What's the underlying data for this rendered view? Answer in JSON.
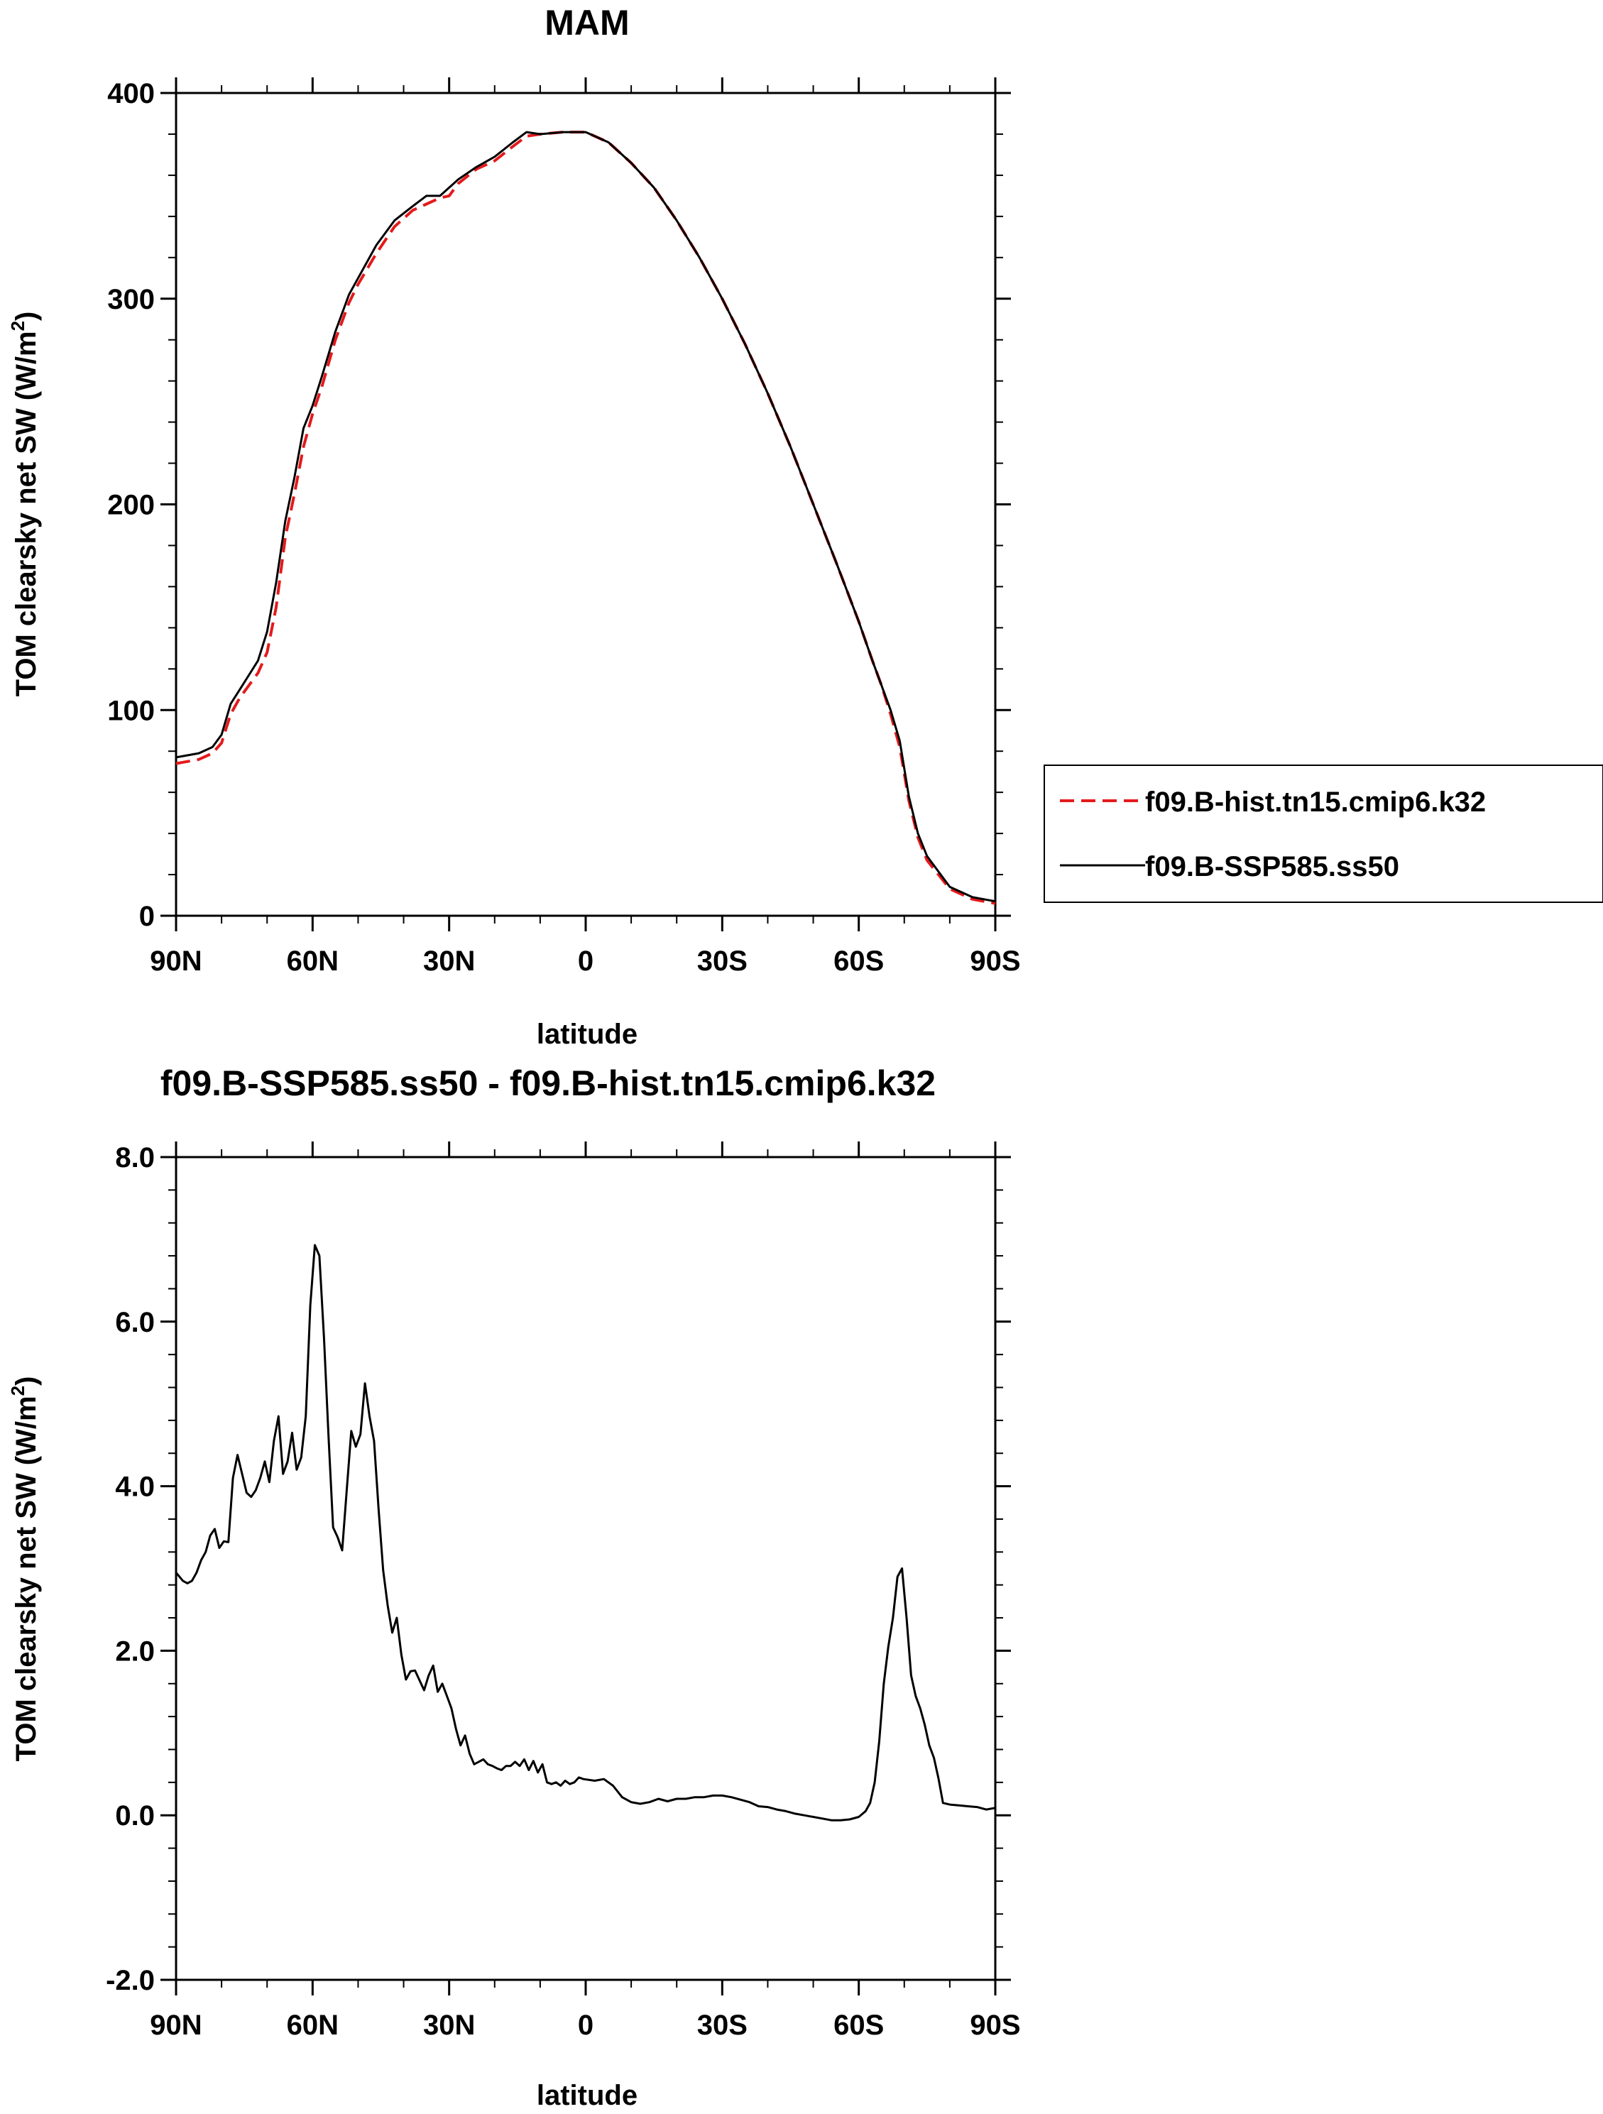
{
  "chart_data": [
    {
      "type": "line",
      "title": "MAM",
      "xlabel": "latitude",
      "ylabel": "TOM clearsky net SW (W/m",
      "ylabel_sup": "2",
      "ylabel_end": ")",
      "xlim": [
        90,
        -90
      ],
      "ylim": [
        0,
        400
      ],
      "xticks": [
        90,
        60,
        30,
        0,
        -30,
        -60,
        -90
      ],
      "xtick_labels": [
        "90N",
        "60N",
        "30N",
        "0",
        "30S",
        "60S",
        "90S"
      ],
      "yticks": [
        0,
        100,
        200,
        300,
        400
      ],
      "ytick_labels": [
        "0",
        "100",
        "200",
        "300",
        "400"
      ],
      "legend": [
        "f09.B-hist.tn15.cmip6.k32",
        "f09.B-SSP585.ss50"
      ],
      "series": [
        {
          "name": "f09.B-hist.tn15.cmip6.k32",
          "color": "#e41a1c",
          "dash": true,
          "x": [
            90,
            85,
            82,
            80,
            78,
            76,
            74,
            72,
            70,
            68,
            66,
            64,
            62,
            60,
            58,
            55,
            52,
            50,
            46,
            42,
            38,
            35,
            32,
            30,
            28,
            24,
            20,
            16,
            13,
            10,
            5,
            0,
            -5,
            -10,
            -15,
            -20,
            -25,
            -30,
            -35,
            -40,
            -45,
            -50,
            -55,
            -60,
            -63,
            -65,
            -67,
            -69,
            -71,
            -73,
            -75,
            -80,
            -85,
            -90
          ],
          "y": [
            74,
            76,
            79,
            84,
            98,
            106,
            112,
            118,
            128,
            150,
            184,
            205,
            228,
            244,
            257,
            280,
            298,
            307,
            322,
            335,
            343,
            346,
            349,
            350,
            356,
            363,
            367,
            374,
            379,
            380,
            381,
            381,
            376,
            366,
            354,
            338,
            320,
            300,
            278,
            254,
            228,
            200,
            172,
            143,
            124,
            112,
            98,
            82,
            56,
            38,
            27,
            13,
            8,
            6
          ]
        },
        {
          "name": "f09.B-SSP585.ss50",
          "color": "#000000",
          "dash": false,
          "x": [
            90,
            85,
            82,
            80,
            78,
            76,
            74,
            72,
            70,
            68,
            66,
            64,
            62,
            60,
            58,
            55,
            52,
            50,
            46,
            42,
            38,
            35,
            32,
            30,
            28,
            24,
            20,
            16,
            13,
            10,
            5,
            0,
            -5,
            -10,
            -15,
            -20,
            -25,
            -30,
            -35,
            -40,
            -45,
            -50,
            -55,
            -60,
            -63,
            -65,
            -67,
            -69,
            -71,
            -73,
            -75,
            -80,
            -85,
            -90
          ],
          "y": [
            77,
            79,
            82,
            88,
            103,
            110,
            117,
            124,
            138,
            162,
            192,
            213,
            237,
            248,
            262,
            284,
            302,
            310,
            326,
            338,
            345,
            350,
            350,
            354,
            358,
            364,
            369,
            376,
            381,
            380,
            381,
            381,
            376,
            366,
            354,
            338,
            320,
            300,
            278,
            254,
            228,
            200,
            172,
            143,
            124,
            112,
            100,
            85,
            58,
            40,
            29,
            14,
            9,
            7
          ]
        }
      ]
    },
    {
      "type": "line",
      "title": "f09.B-SSP585.ss50 - f09.B-hist.tn15.cmip6.k32",
      "xlabel": "latitude",
      "ylabel": "TOM clearsky net SW (W/m",
      "ylabel_sup": "2",
      "ylabel_end": ")",
      "xlim": [
        90,
        -90
      ],
      "ylim": [
        -2,
        8
      ],
      "xticks": [
        90,
        60,
        30,
        0,
        -30,
        -60,
        -90
      ],
      "xtick_labels": [
        "90N",
        "60N",
        "30N",
        "0",
        "30S",
        "60S",
        "90S"
      ],
      "yticks": [
        -2,
        0,
        2,
        4,
        6,
        8
      ],
      "ytick_labels": [
        "-2.0",
        "0.0",
        "2.0",
        "4.0",
        "6.0",
        "8.0"
      ],
      "series": [
        {
          "name": "f09.B-SSP585.ss50 - f09.B-hist.tn15.cmip6.k32",
          "color": "#000000",
          "dash": false,
          "x": [
            90,
            88.5,
            87.5,
            86.5,
            85.5,
            84.5,
            83.5,
            82.5,
            81.5,
            80.5,
            79.5,
            78.5,
            77.5,
            76.5,
            75.5,
            74.5,
            73.5,
            72.5,
            71.5,
            70.5,
            69.5,
            68.5,
            67.5,
            66.5,
            65.5,
            64.5,
            63.5,
            62.5,
            61.5,
            60.5,
            59.5,
            58.5,
            57.5,
            56.5,
            55.5,
            54.5,
            53.5,
            52.5,
            51.5,
            50.5,
            49.5,
            48.5,
            47.5,
            46.5,
            45.5,
            44.5,
            43.5,
            42.5,
            41.5,
            40.5,
            39.5,
            38.5,
            37.5,
            36.5,
            35.5,
            34.5,
            33.5,
            32.5,
            31.5,
            30.5,
            29.5,
            28.5,
            27.5,
            26.5,
            25.5,
            24.5,
            23.5,
            22.5,
            21.5,
            20.5,
            19.5,
            18.5,
            17.5,
            16.5,
            15.5,
            14.5,
            13.5,
            12.5,
            11.5,
            10.5,
            9.5,
            8.5,
            7.5,
            6.5,
            5.5,
            4.5,
            3.5,
            2.5,
            1.5,
            0.5,
            -2,
            -4,
            -6,
            -8,
            -10,
            -12,
            -14,
            -16,
            -18,
            -20,
            -22,
            -24,
            -26,
            -28,
            -30,
            -32,
            -34,
            -36,
            -38,
            -40,
            -42,
            -44,
            -46,
            -48,
            -50,
            -52,
            -54,
            -56,
            -58,
            -60,
            -61.5,
            -62.5,
            -63.5,
            -64.5,
            -65.5,
            -66.5,
            -67.5,
            -68.5,
            -69.5,
            -70.5,
            -71.5,
            -72.5,
            -73.5,
            -74.5,
            -75.5,
            -76.5,
            -77.5,
            -78.5,
            -80,
            -82,
            -84,
            -86,
            -88,
            -90
          ],
          "y": [
            2.95,
            2.85,
            2.82,
            2.85,
            2.95,
            3.1,
            3.2,
            3.4,
            3.48,
            3.25,
            3.33,
            3.32,
            4.1,
            4.38,
            4.15,
            3.92,
            3.87,
            3.95,
            4.1,
            4.3,
            4.05,
            4.55,
            4.85,
            4.15,
            4.3,
            4.65,
            4.2,
            4.35,
            4.85,
            6.2,
            6.93,
            6.8,
            5.8,
            4.6,
            3.5,
            3.38,
            3.22,
            3.95,
            4.67,
            4.48,
            4.63,
            5.25,
            4.85,
            4.55,
            3.72,
            2.98,
            2.55,
            2.22,
            2.4,
            1.95,
            1.65,
            1.75,
            1.76,
            1.64,
            1.52,
            1.7,
            1.82,
            1.5,
            1.6,
            1.45,
            1.3,
            1.05,
            0.85,
            0.97,
            0.75,
            0.62,
            0.65,
            0.68,
            0.62,
            0.6,
            0.57,
            0.55,
            0.6,
            0.6,
            0.65,
            0.6,
            0.68,
            0.55,
            0.66,
            0.52,
            0.62,
            0.4,
            0.38,
            0.4,
            0.36,
            0.42,
            0.38,
            0.4,
            0.46,
            0.44,
            0.42,
            0.44,
            0.36,
            0.22,
            0.16,
            0.14,
            0.16,
            0.2,
            0.17,
            0.2,
            0.2,
            0.22,
            0.22,
            0.24,
            0.24,
            0.22,
            0.19,
            0.16,
            0.11,
            0.1,
            0.07,
            0.05,
            0.02,
            0.0,
            -0.02,
            -0.04,
            -0.06,
            -0.06,
            -0.05,
            -0.02,
            0.05,
            0.15,
            0.4,
            0.9,
            1.6,
            2.05,
            2.4,
            2.9,
            3.0,
            2.4,
            1.7,
            1.45,
            1.3,
            1.1,
            0.85,
            0.7,
            0.45,
            0.15,
            0.13,
            0.12,
            0.11,
            0.1,
            0.07,
            0.09
          ]
        }
      ]
    }
  ]
}
